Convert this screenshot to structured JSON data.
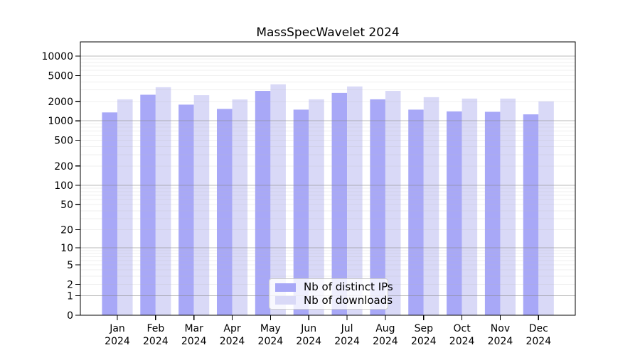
{
  "chart_data": {
    "type": "bar",
    "title": "MassSpecWavelet 2024",
    "categories": [
      "Jan",
      "Feb",
      "Mar",
      "Apr",
      "May",
      "Jun",
      "Jul",
      "Aug",
      "Sep",
      "Oct",
      "Nov",
      "Dec"
    ],
    "x_sub_label": "2024",
    "series": [
      {
        "name": "Nb of distinct IPs",
        "color": "#a8a8f7",
        "values": [
          1350,
          2530,
          1780,
          1530,
          2900,
          1490,
          2700,
          2150,
          1490,
          1400,
          1380,
          1260
        ]
      },
      {
        "name": "Nb of downloads",
        "color": "#d9d9f7",
        "values": [
          2150,
          3310,
          2490,
          2140,
          3670,
          2150,
          3400,
          2900,
          2320,
          2210,
          2210,
          2000
        ]
      }
    ],
    "yscale": "log(value+1)",
    "y_ticks": [
      0,
      1,
      2,
      5,
      10,
      20,
      50,
      100,
      200,
      500,
      1000,
      2000,
      5000,
      10000
    ],
    "ylim": [
      0,
      16500
    ],
    "grid": "horizontal, major at powers of 10, minor at 2-9 per decade, drawn over bars",
    "legend_position": "lower center"
  },
  "colors": {
    "background": "#ffffff",
    "axis": "#000000",
    "text": "#000000",
    "major_grid": "#8a8a8a",
    "minor_grid": "#b5b5b5",
    "legend_border": "#cccccc",
    "legend_bg": "#ffffff"
  }
}
